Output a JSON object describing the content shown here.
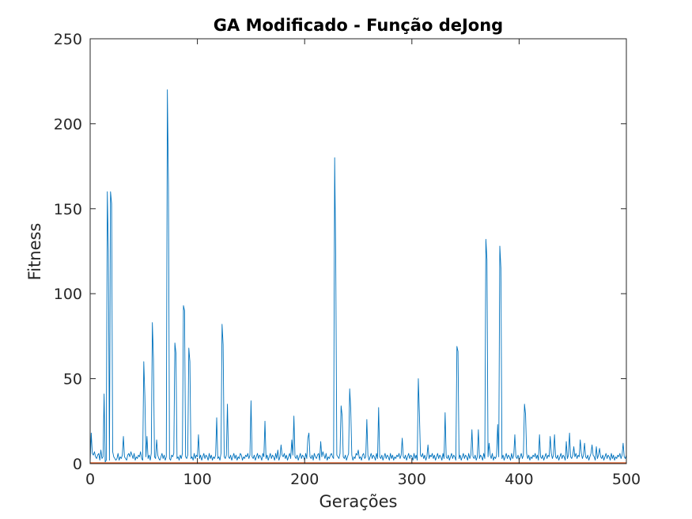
{
  "chart_data": {
    "type": "line",
    "title": "GA Modificado - Função deJong",
    "xlabel": "Gerações",
    "ylabel": "Fitness",
    "xlim": [
      0,
      500
    ],
    "ylim": [
      0,
      250
    ],
    "xticks": [
      0,
      100,
      200,
      300,
      400,
      500
    ],
    "yticks": [
      0,
      50,
      100,
      150,
      200,
      250
    ],
    "xtick_labels": [
      "0",
      "100",
      "200",
      "300",
      "400",
      "500"
    ],
    "ytick_labels": [
      "0",
      "50",
      "100",
      "150",
      "200",
      "250"
    ],
    "grid": false,
    "box": true,
    "series": [
      {
        "name": "fitness",
        "color": "#0072bd",
        "base": [
          1,
          18,
          6,
          5,
          7,
          4,
          3,
          5,
          6,
          2,
          8,
          3,
          4,
          41,
          1,
          2,
          160,
          125,
          2,
          160,
          153,
          7,
          4,
          3,
          2,
          3,
          6,
          2,
          4,
          3,
          5,
          16,
          4,
          3,
          2,
          5,
          6,
          4,
          7,
          5,
          3,
          6,
          2,
          4,
          3,
          5,
          4,
          7,
          3,
          2,
          60,
          40,
          4,
          16,
          3,
          5,
          2,
          6,
          83,
          62,
          4,
          3,
          14,
          5,
          3,
          2,
          4,
          6,
          3,
          5,
          2,
          4,
          220,
          164,
          3,
          2,
          5,
          4,
          6,
          71,
          65,
          3,
          4,
          2,
          5,
          3,
          6,
          93,
          90,
          4,
          3,
          5,
          68,
          60,
          3,
          4,
          2,
          6,
          3,
          5,
          4,
          17,
          3,
          5,
          2,
          4,
          6,
          3,
          5,
          4,
          2,
          6,
          3,
          5,
          2,
          4,
          3,
          5,
          27,
          3,
          4,
          2,
          6,
          82,
          70,
          4,
          3,
          5,
          35,
          4,
          3,
          5,
          2,
          4,
          6,
          3,
          5,
          2,
          4,
          3,
          6,
          5,
          2,
          4,
          3,
          5,
          4,
          6,
          3,
          5,
          37,
          4,
          3,
          5,
          2,
          4,
          6,
          3,
          5,
          4,
          2,
          6,
          4,
          25,
          3,
          5,
          2,
          4,
          6,
          3,
          5,
          4,
          2,
          6,
          3,
          8,
          2,
          4,
          11,
          5,
          4,
          6,
          3,
          5,
          2,
          4,
          6,
          3,
          14,
          5,
          28,
          4,
          3,
          5,
          2,
          4,
          6,
          3,
          5,
          4,
          2,
          6,
          3,
          15,
          18,
          4,
          3,
          5,
          2,
          6,
          4,
          3,
          5,
          6,
          2,
          13,
          4,
          7,
          5,
          3,
          6,
          2,
          4,
          3,
          5,
          6,
          4,
          3,
          180,
          120,
          5,
          4,
          3,
          6,
          34,
          28,
          4,
          3,
          5,
          2,
          4,
          6,
          44,
          32,
          5,
          2,
          4,
          3,
          6,
          5,
          8,
          3,
          4,
          2,
          5,
          6,
          3,
          4,
          26,
          5,
          2,
          4,
          6,
          3,
          5,
          4,
          2,
          6,
          3,
          33,
          4,
          3,
          5,
          2,
          4,
          6,
          3,
          5,
          4,
          2,
          6,
          3,
          5,
          2,
          4,
          3,
          5,
          4,
          6,
          3,
          5,
          15,
          4,
          3,
          5,
          2,
          4,
          6,
          3,
          5,
          4,
          2,
          6,
          3,
          5,
          2,
          50,
          30,
          5,
          4,
          6,
          3,
          5,
          2,
          4,
          11,
          3,
          5,
          4,
          6,
          3,
          5,
          2,
          4,
          6,
          3,
          5,
          4,
          2,
          6,
          3,
          30,
          4,
          3,
          5,
          2,
          4,
          6,
          3,
          5,
          4,
          2,
          69,
          66,
          3,
          5,
          2,
          4,
          6,
          3,
          5,
          4,
          2,
          6,
          3,
          5,
          20,
          4,
          3,
          5,
          2,
          4,
          20,
          3,
          5,
          4,
          2,
          6,
          3,
          132,
          120,
          4,
          12,
          5,
          3,
          6,
          2,
          4,
          3,
          5,
          23,
          4,
          128,
          115,
          3,
          5,
          2,
          4,
          6,
          3,
          5,
          4,
          2,
          6,
          3,
          5,
          17,
          4,
          3,
          5,
          2,
          4,
          6,
          3,
          5,
          35,
          29,
          6,
          3,
          5,
          2,
          4,
          3,
          5,
          4,
          6,
          3,
          5,
          2,
          17,
          4,
          3,
          5,
          2,
          4,
          6,
          3,
          5,
          4,
          16,
          6,
          3,
          5,
          17,
          4,
          3,
          5,
          2,
          4,
          6,
          3,
          5,
          4,
          2,
          13,
          3,
          5,
          18,
          4,
          3,
          5,
          10,
          4,
          6,
          3,
          5,
          4,
          14,
          6,
          3,
          5,
          12,
          4,
          3,
          5,
          2,
          4,
          6,
          11,
          5,
          4,
          2,
          10,
          3,
          5,
          9,
          4,
          3,
          5,
          2,
          4,
          6,
          3,
          5,
          4,
          2,
          6,
          3,
          5,
          2,
          4,
          3,
          5,
          4,
          6,
          3,
          5,
          12,
          4,
          3,
          5,
          2,
          4,
          6,
          3,
          5,
          4,
          2,
          6,
          3,
          5,
          16,
          4,
          3,
          5,
          2,
          4,
          12
        ]
      },
      {
        "name": "baseline",
        "color": "#d95319",
        "values": [
          0,
          0
        ]
      }
    ]
  }
}
